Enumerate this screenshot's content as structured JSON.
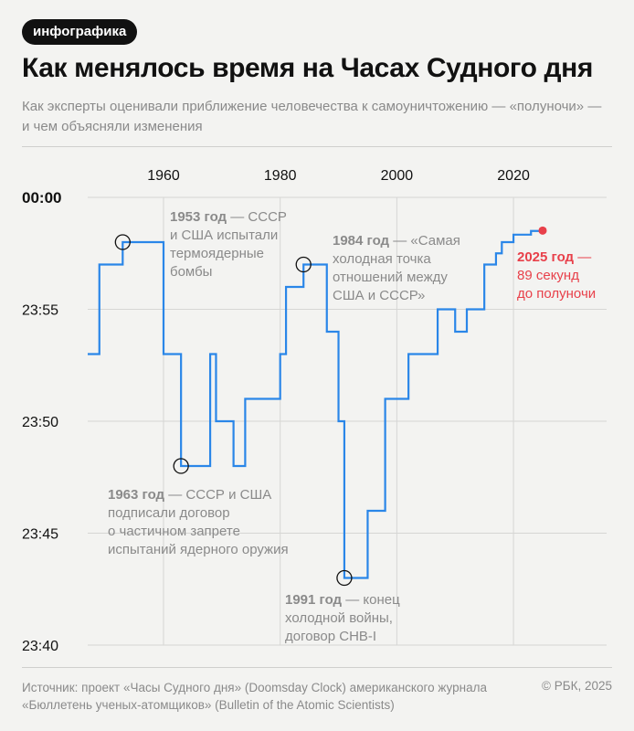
{
  "header": {
    "badge": "инфографика",
    "title": "Как менялось время на Часах Судного дня",
    "subtitle": "Как эксперты оценивали приближение человечества к самоуничтожению — «полуночи» — и чем объясняли изменения"
  },
  "footer": {
    "source": "Источник: проект «Часы Судного дня» (Doomsday Clock) американского журнала «Бюллетень ученых-атомщиков» (Bulletin of the Atomic Scientists)",
    "copyright": "© РБК, 2025"
  },
  "colors": {
    "line": "#2a86e8",
    "highlight": "#e8404a",
    "grid": "#d6d6d4",
    "annotation": "#8a8a8a"
  },
  "chart_data": {
    "type": "line",
    "step": true,
    "x_unit": "year",
    "y_unit": "seconds before midnight",
    "xlim": [
      1947,
      2025
    ],
    "ylim": [
      1200,
      0
    ],
    "x_ticks": [
      {
        "value": 1960,
        "label": "1960"
      },
      {
        "value": 1980,
        "label": "1980"
      },
      {
        "value": 2000,
        "label": "2000"
      },
      {
        "value": 2020,
        "label": "2020"
      }
    ],
    "y_ticks": [
      {
        "value": 0,
        "label": "00:00"
      },
      {
        "value": 300,
        "label": "23:55"
      },
      {
        "value": 600,
        "label": "23:50"
      },
      {
        "value": 900,
        "label": "23:45"
      },
      {
        "value": 1200,
        "label": "23:40"
      }
    ],
    "grid": true,
    "series": [
      {
        "points": [
          [
            1947,
            420
          ],
          [
            1949,
            180
          ],
          [
            1953,
            120
          ],
          [
            1960,
            420
          ],
          [
            1963,
            720
          ],
          [
            1968,
            420
          ],
          [
            1969,
            600
          ],
          [
            1972,
            720
          ],
          [
            1974,
            540
          ],
          [
            1980,
            420
          ],
          [
            1981,
            240
          ],
          [
            1984,
            180
          ],
          [
            1988,
            360
          ],
          [
            1990,
            600
          ],
          [
            1991,
            1020
          ],
          [
            1995,
            840
          ],
          [
            1998,
            540
          ],
          [
            2002,
            420
          ],
          [
            2007,
            300
          ],
          [
            2010,
            360
          ],
          [
            2012,
            300
          ],
          [
            2015,
            180
          ],
          [
            2017,
            150
          ],
          [
            2018,
            120
          ],
          [
            2020,
            100
          ],
          [
            2023,
            90
          ],
          [
            2025,
            89
          ]
        ]
      }
    ],
    "annotations": [
      {
        "year": 1953,
        "value": 120,
        "bold": "1953 год",
        "text": " — СССР и США испытали термоядерные бомбы",
        "lines": [
          "{b} — СССР",
          "и США испытали",
          "термоядерные",
          "бомбы"
        ]
      },
      {
        "year": 1963,
        "value": 720,
        "bold": "1963 год",
        "text": " — СССР и США подписали договор о частичном запрете испытаний ядерного оружия",
        "lines": [
          "{b} — СССР и США",
          "подписали договор",
          "о частичном запрете",
          "испытаний ядерного оружия"
        ]
      },
      {
        "year": 1984,
        "value": 180,
        "bold": "1984 год",
        "text": " — «Самая холодная точка отношений между США и СССР»",
        "lines": [
          "{b} — «Самая",
          "холодная точка",
          "отношений между",
          "США и СССР»"
        ]
      },
      {
        "year": 1991,
        "value": 1020,
        "bold": "1991 год",
        "text": " — конец холодной войны, договор СНВ-I",
        "lines": [
          "{b} — конец",
          "холодной войны,",
          "договор СНВ-I"
        ]
      },
      {
        "year": 2025,
        "value": 89,
        "bold": "2025 год",
        "text": " — 89 секунд до полуночи",
        "lines": [
          "{b} —",
          "89 секунд",
          "до полуночи"
        ],
        "highlight": true
      }
    ]
  }
}
